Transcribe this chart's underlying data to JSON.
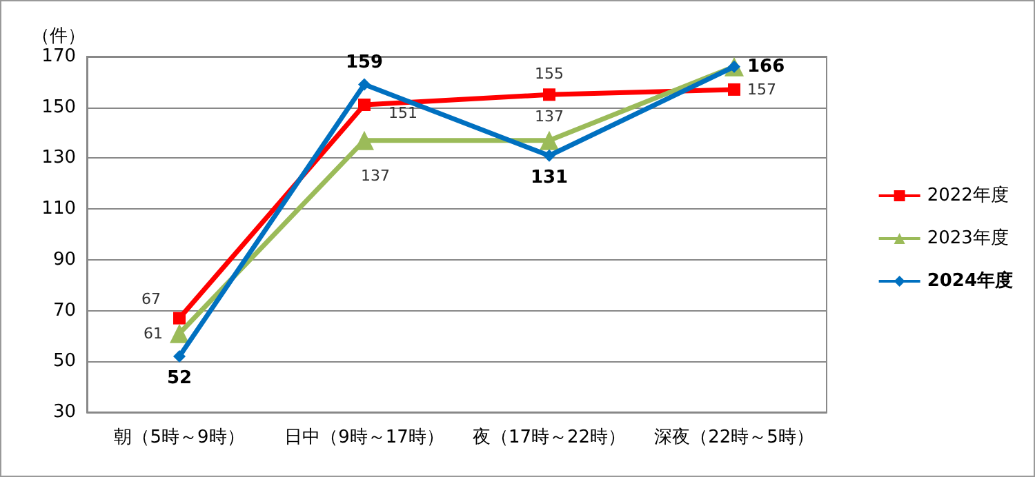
{
  "chart_data": {
    "type": "line",
    "ylabel": "（件）",
    "categories": [
      "朝（5時～9時）",
      "日中（9時～17時）",
      "夜（17時～22時）",
      "深夜（22時～5時）"
    ],
    "ylim": [
      30,
      170
    ],
    "yticks": [
      30,
      50,
      70,
      90,
      110,
      130,
      150,
      170
    ],
    "grid": "y",
    "legend": "right",
    "line_style": "solid",
    "series": [
      {
        "name": "2022年度",
        "color": "#ff0000",
        "marker": "square",
        "values": [
          67,
          151,
          155,
          157
        ],
        "value_labels": [
          "67",
          "151",
          "155",
          "157"
        ]
      },
      {
        "name": "2023年度",
        "color": "#9bbb59",
        "marker": "triangle",
        "values": [
          61,
          137,
          137,
          166
        ],
        "value_labels": [
          "61",
          "137",
          "137",
          null
        ]
      },
      {
        "name": "2024年度",
        "color": "#0070c0",
        "marker": "diamond",
        "values": [
          52,
          159,
          131,
          166
        ],
        "value_labels": [
          "52",
          "159",
          "131",
          "166"
        ]
      }
    ]
  }
}
